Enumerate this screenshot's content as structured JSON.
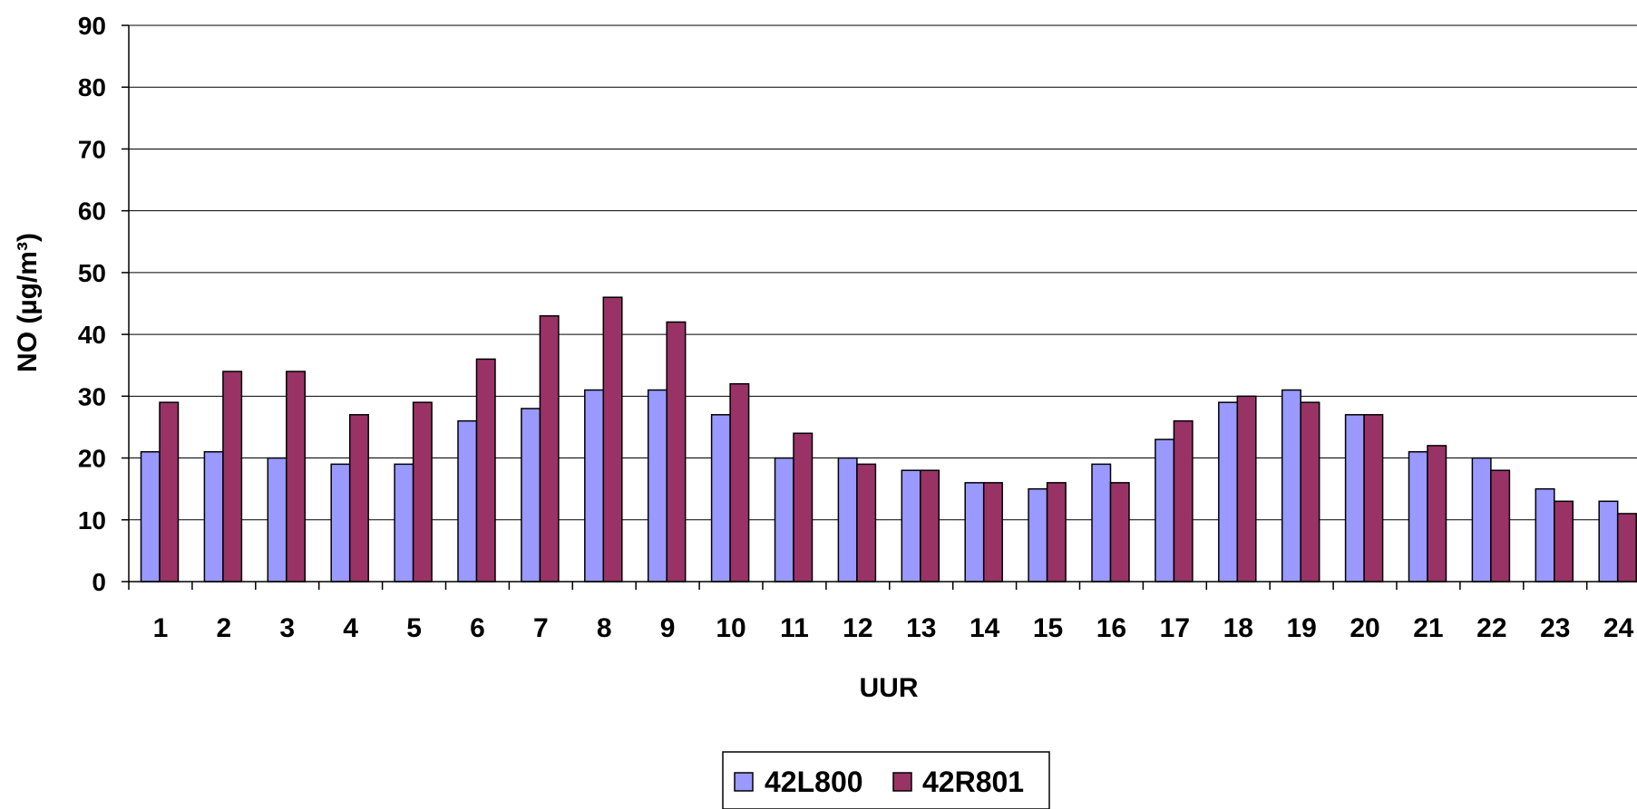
{
  "chart_data": {
    "type": "bar",
    "title": "",
    "xlabel": "UUR",
    "ylabel": "NO (µg/m³)",
    "ylim": [
      0,
      90
    ],
    "yticks": [
      "0",
      "10",
      "20",
      "30",
      "40",
      "50",
      "60",
      "70",
      "80",
      "90"
    ],
    "grid": true,
    "legend_position": "bottom-center",
    "categories": [
      "1",
      "2",
      "3",
      "4",
      "5",
      "6",
      "7",
      "8",
      "9",
      "10",
      "11",
      "12",
      "13",
      "14",
      "15",
      "16",
      "17",
      "18",
      "19",
      "20",
      "21",
      "22",
      "23",
      "24"
    ],
    "series": [
      {
        "name": "42L800",
        "color": "#9999ff",
        "values": [
          21,
          21,
          20,
          19,
          19,
          26,
          28,
          31,
          31,
          27,
          20,
          20,
          18,
          16,
          15,
          19,
          23,
          29,
          31,
          27,
          21,
          20,
          15,
          13
        ]
      },
      {
        "name": "42R801",
        "color": "#993366",
        "values": [
          29,
          34,
          34,
          27,
          29,
          36,
          43,
          46,
          42,
          32,
          24,
          19,
          18,
          16,
          16,
          16,
          26,
          30,
          29,
          27,
          22,
          18,
          13,
          11
        ]
      }
    ]
  }
}
